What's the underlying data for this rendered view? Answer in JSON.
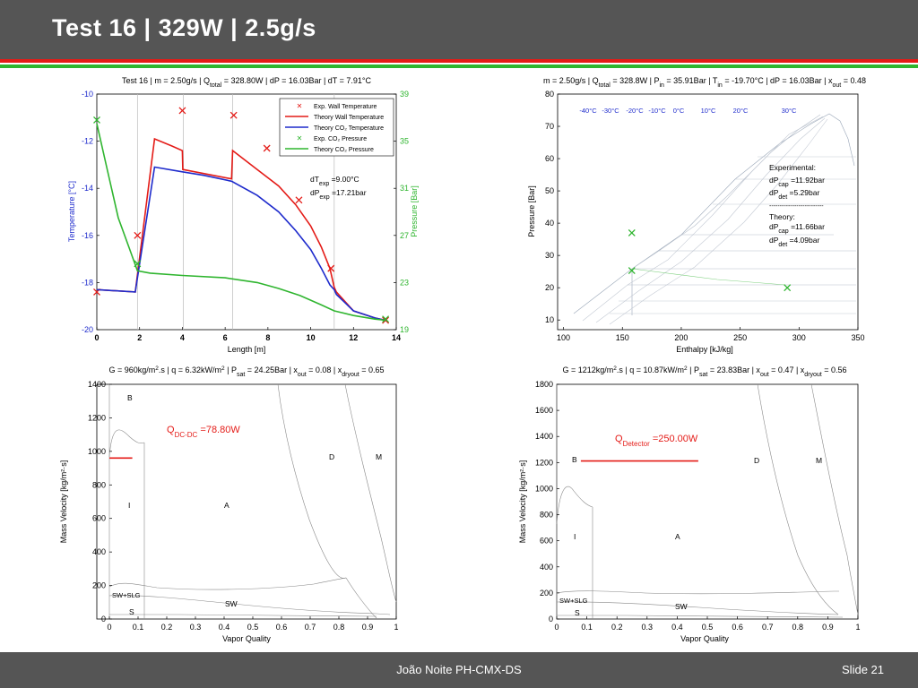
{
  "slide": {
    "title": "Test 16 |  329W | 2.5g/s",
    "author": "João Noite PH-CMX-DS",
    "slide_number": "Slide 21",
    "colors": {
      "header_bg": "#555555",
      "stripe_red": "#e41b17",
      "stripe_green": "#2fb52f"
    }
  },
  "chart_data": [
    {
      "id": "temp_pressure_vs_length",
      "type": "line",
      "title_parts": [
        "Test 16 | m = 2.50g/s | Q",
        "total",
        " = 328.80W | dP = 16.03Bar | dT = 7.91°C"
      ],
      "xlabel": "Length [m]",
      "ylabel_left": "Temperature [°C]",
      "ylabel_right": "Pressure [Bar]",
      "xlim": [
        0,
        14
      ],
      "ylim_left": [
        -20,
        -10
      ],
      "ylim_right": [
        19,
        39
      ],
      "xticks": [
        0,
        2,
        4,
        6,
        8,
        10,
        12,
        14
      ],
      "yticks_left": [
        -20,
        -18,
        -16,
        -14,
        -12,
        -10
      ],
      "yticks_right": [
        19,
        23,
        27,
        31,
        35,
        39
      ],
      "vlines": [
        1.9,
        4.05,
        6.35,
        11.1
      ],
      "legend": [
        "Exp. Wall Temperature",
        "Theory  Wall Temperature",
        "Theory  CO₂ Temperature",
        "Exp. CO₂ Pressure",
        "Theory  CO₂ Pressure"
      ],
      "series": [
        {
          "name": "Exp. Wall Temperature",
          "axis": "left",
          "marker": "x",
          "color": "#e41b17",
          "x": [
            0,
            1.9,
            4.0,
            6.4,
            7.95,
            9.45,
            10.95,
            13.5
          ],
          "y": [
            -18.4,
            -16.0,
            -10.7,
            -10.9,
            -12.3,
            -14.5,
            -17.4,
            -19.6
          ]
        },
        {
          "name": "Theory  Wall Temperature",
          "axis": "left",
          "color": "#e41b17",
          "x": [
            0,
            1.8,
            2.7,
            3.5,
            4.0,
            4.02,
            6.3,
            6.35,
            7.5,
            8.5,
            9.3,
            10.0,
            10.5,
            10.9,
            11.1,
            11.2,
            12,
            13,
            13.5
          ],
          "y": [
            -18.3,
            -18.4,
            -11.9,
            -12.2,
            -12.4,
            -13.2,
            -13.6,
            -12.4,
            -13.2,
            -13.9,
            -14.7,
            -15.6,
            -16.5,
            -17.4,
            -18.2,
            -18.4,
            -19.2,
            -19.5,
            -19.6
          ]
        },
        {
          "name": "Theory  CO₂ Temperature",
          "axis": "left",
          "color": "#1e2bcc",
          "x": [
            0,
            1.8,
            2.7,
            4.0,
            5.0,
            6.3,
            7.5,
            8.5,
            9.3,
            10.0,
            10.5,
            10.9,
            11.1,
            11.2,
            12,
            13,
            13.5
          ],
          "y": [
            -18.3,
            -18.4,
            -13.1,
            -13.3,
            -13.45,
            -13.7,
            -14.3,
            -15.0,
            -15.8,
            -16.6,
            -17.4,
            -18.1,
            -18.3,
            -18.5,
            -19.2,
            -19.5,
            -19.6
          ]
        },
        {
          "name": "Exp. CO₂ Pressure",
          "axis": "right",
          "marker": "x",
          "color": "#2fb52f",
          "x": [
            0,
            1.9,
            13.5
          ],
          "y": [
            36.8,
            24.6,
            19.9
          ]
        },
        {
          "name": "Theory  CO₂ Pressure",
          "axis": "right",
          "color": "#2fb52f",
          "x": [
            0,
            0.5,
            1.0,
            1.5,
            1.9,
            2.5,
            4.0,
            6.0,
            7.5,
            8.5,
            9.5,
            10.5,
            11.1,
            12,
            13,
            13.5
          ],
          "y": [
            36.5,
            32.5,
            28.5,
            26.0,
            24.0,
            23.8,
            23.6,
            23.4,
            23.0,
            22.5,
            21.9,
            21.1,
            20.6,
            20.2,
            19.9,
            19.8
          ]
        }
      ],
      "annotations": {
        "dT_label": "dT",
        "dT_sub": "exp",
        "dT_value": " =9.00°C",
        "dP_label": "dP",
        "dP_sub": "exp",
        "dP_value": " =17.21bar"
      }
    },
    {
      "id": "ph_diagram",
      "type": "scatter",
      "title_parts": [
        "m = 2.50g/s | Q",
        "total",
        " = 328.8W | P",
        "in",
        " = 35.91Bar | T",
        "in",
        " = -19.70°C | dP = 16.03Bar | x",
        "out",
        " = 0.48"
      ],
      "xlabel": "Enthalpy [kJ/kg]",
      "ylabel": "Pressure [Bar]",
      "xlim": [
        95,
        350
      ],
      "ylim": [
        7,
        80
      ],
      "xticks": [
        100,
        150,
        200,
        250,
        300,
        350
      ],
      "yticks": [
        10,
        20,
        30,
        40,
        50,
        60,
        70,
        80
      ],
      "isotherm_labels": [
        "-40°C",
        "-30°C",
        "-20°C",
        "-10°C",
        "0°C",
        "10°C",
        "20°C",
        "30°C"
      ],
      "series": [
        {
          "name": "Exp. CO₂ Pressure",
          "marker": "x",
          "color": "#2fb52f",
          "x": [
            158,
            158,
            290
          ],
          "y": [
            37,
            25.3,
            20
          ]
        }
      ],
      "experimental": {
        "title": "Experimental:",
        "dpcap_value": " =11.92bar",
        "dpdet_value": " =5.29bar"
      },
      "divider": "--------------------------",
      "theory": {
        "title": "Theory:",
        "dpcap_value": " =11.66bar",
        "dpdet_value": " =4.09bar"
      },
      "dp_label": "dP",
      "cap_sub": "cap",
      "det_sub": "det"
    },
    {
      "id": "flow_map_1",
      "type": "line",
      "title_parts": [
        "G = 960kg/m",
        "2",
        ".s | q = 6.32kW/m",
        "2",
        " | P",
        "sat",
        " = 24.25Bar | x",
        "out",
        " = 0.08 | x",
        "dryout",
        " = 0.65"
      ],
      "xlabel": "Vapor Quality",
      "ylabel": "Mass Velocity [kg/m²·s]",
      "xlim": [
        0,
        1
      ],
      "ylim": [
        0,
        1400
      ],
      "xticks": [
        "0",
        "0.1",
        "0.2",
        "0.3",
        "0.4",
        "0.5",
        "0.6",
        "0.7",
        "0.8",
        "0.9",
        "1"
      ],
      "yticks": [
        0,
        200,
        400,
        600,
        800,
        1000,
        1200,
        1400
      ],
      "regions": [
        "B",
        "I",
        "A",
        "D",
        "M",
        "SW+SLG",
        "S",
        "SW"
      ],
      "operating_line": {
        "x": [
          0,
          0.08
        ],
        "y": [
          960,
          960
        ],
        "color": "#e41b17"
      },
      "q_label": "Q",
      "q_sub": "DC-DC",
      "q_value": " =78.80W"
    },
    {
      "id": "flow_map_2",
      "type": "line",
      "title_parts": [
        "G = 1212kg/m",
        "2",
        ".s | q = 10.87kW/m",
        "2",
        " | P",
        "sat",
        " = 23.83Bar | x",
        "out",
        " = 0.47 | x",
        "dryout",
        " = 0.56"
      ],
      "xlabel": "Vapor Quality",
      "ylabel": "Mass Velocity [kg/m²·s]",
      "xlim": [
        0,
        1
      ],
      "ylim": [
        0,
        1800
      ],
      "xticks": [
        "0",
        "0.1",
        "0.2",
        "0.3",
        "0.4",
        "0.5",
        "0.6",
        "0.7",
        "0.8",
        "0.9",
        "1"
      ],
      "yticks": [
        0,
        200,
        400,
        600,
        800,
        1000,
        1200,
        1400,
        1600,
        1800
      ],
      "regions": [
        "B",
        "I",
        "A",
        "D",
        "M",
        "SW+SLG",
        "S",
        "SW"
      ],
      "operating_line": {
        "x": [
          0.08,
          0.47
        ],
        "y": [
          1212,
          1212
        ],
        "color": "#e41b17"
      },
      "q_label": "Q",
      "q_sub": "Detector",
      "q_value": " =250.00W"
    }
  ]
}
